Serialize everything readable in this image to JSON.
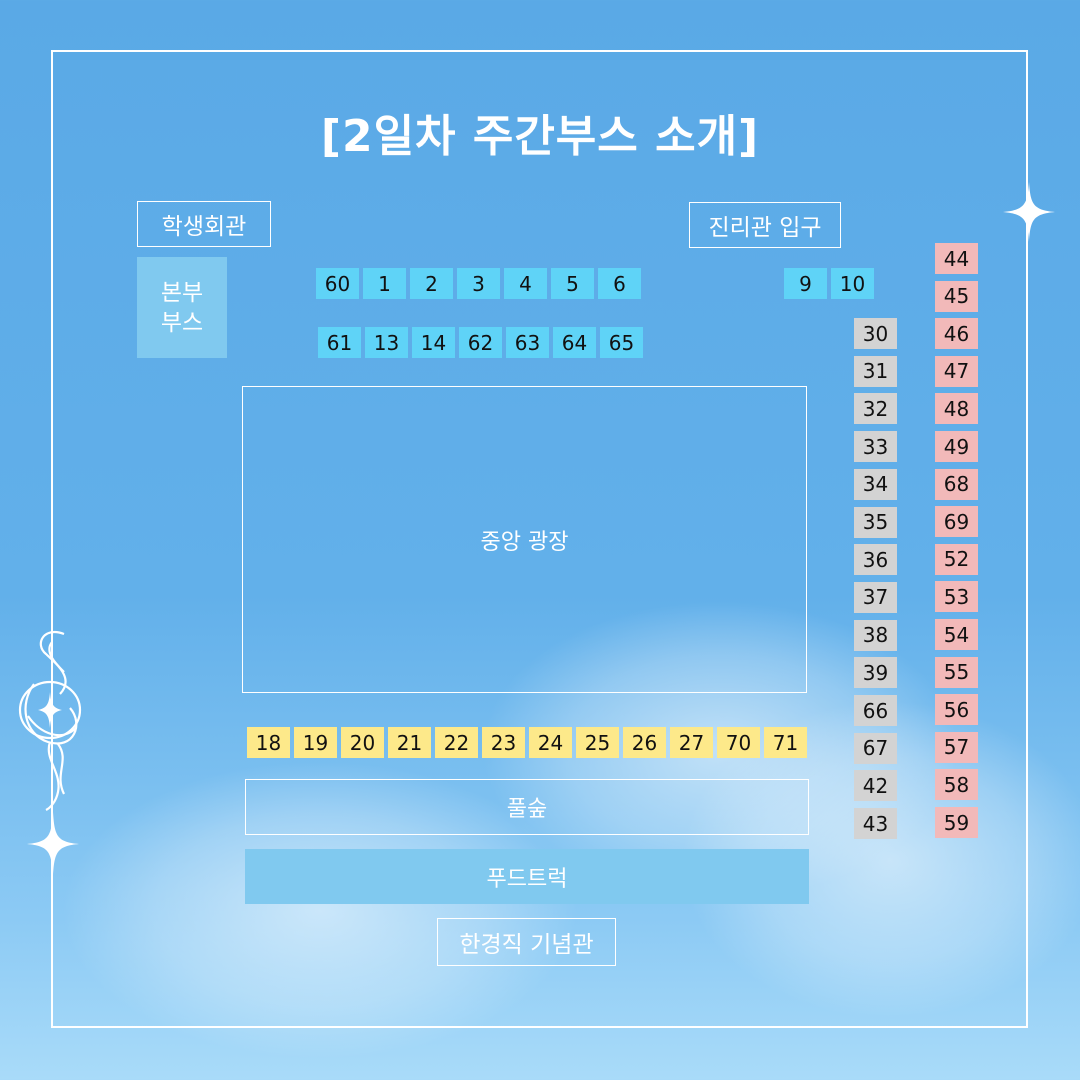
{
  "title": "[2일차 주간부스 소개]",
  "landmarks": {
    "student_hall": "학생회관",
    "jinri_entrance": "진리관 입구",
    "hq_booth_line1": "본부",
    "hq_booth_line2": "부스",
    "central_plaza": "중앙 광장",
    "forest": "풀숲",
    "food_truck": "푸드트럭",
    "memorial_hall": "한경직 기념관"
  },
  "booths": {
    "top_row_1": [
      "60",
      "1",
      "2",
      "3",
      "4",
      "5",
      "6"
    ],
    "top_row_1_right": [
      "9",
      "10"
    ],
    "top_row_2": [
      "61",
      "13",
      "14",
      "62",
      "63",
      "64",
      "65"
    ],
    "bottom_row": [
      "18",
      "19",
      "20",
      "21",
      "22",
      "23",
      "24",
      "25",
      "26",
      "27",
      "70",
      "71"
    ],
    "gray_column": [
      "30",
      "31",
      "32",
      "33",
      "34",
      "35",
      "36",
      "37",
      "38",
      "39",
      "66",
      "67",
      "42",
      "43"
    ],
    "pink_column": [
      "44",
      "45",
      "46",
      "47",
      "48",
      "49",
      "68",
      "69",
      "52",
      "53",
      "54",
      "55",
      "56",
      "57",
      "58",
      "59"
    ]
  },
  "colors": {
    "background": "#62b0ea",
    "blue_booth": "#5fd3f7",
    "yellow_booth": "#fde98a",
    "gray_booth": "#d3d3d3",
    "pink_booth": "#f2b9b9",
    "block_fill": "#80c9ef"
  },
  "icons": [
    "sparkle-icon",
    "sparkle-icon",
    "ornament-icon"
  ]
}
